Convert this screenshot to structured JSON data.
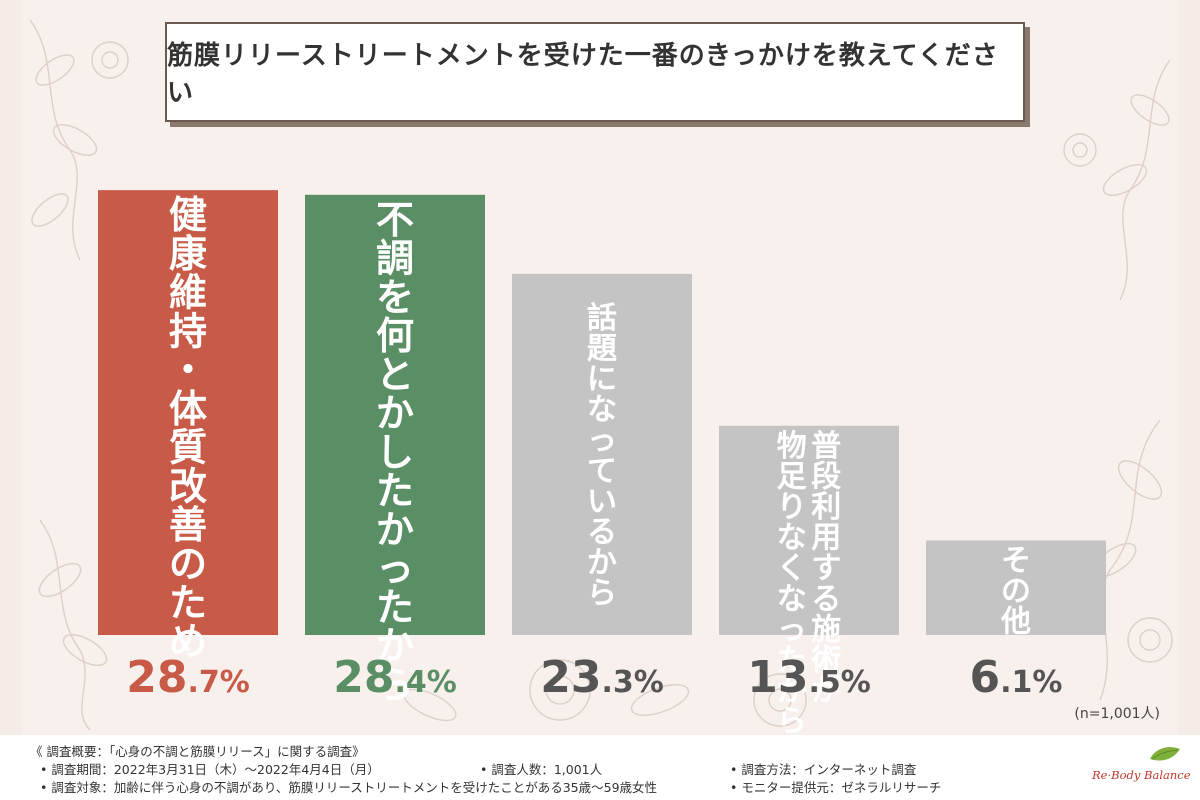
{
  "chart_data": {
    "type": "bar",
    "title": "筋膜リリーストリートメントを受けた一番のきっかけを教えてください",
    "categories": [
      "健康維持・体質改善のため",
      "不調を何とかしたかったから",
      "話題になっているから",
      "普段利用する施術が物足りなくなったから",
      "その他"
    ],
    "category_lines": [
      [
        "健康維持・体質改善のため"
      ],
      [
        "不調を何とかしたかったから"
      ],
      [
        "話題になっているから"
      ],
      [
        "普段利用する施術が",
        "物足りなくなったから"
      ],
      [
        "その他"
      ]
    ],
    "values": [
      28.7,
      28.4,
      23.3,
      13.5,
      6.1
    ],
    "value_labels": [
      "28.7%",
      "28.4%",
      "23.3%",
      "13.5%",
      "6.1%"
    ],
    "unit": "%",
    "ylim": [
      0,
      30
    ],
    "grid": false,
    "colors": [
      "#c85a48",
      "#5a8f65",
      "#c4c4c4",
      "#c4c4c4",
      "#c4c4c4"
    ],
    "value_colors": [
      "#c85a48",
      "#5a8f65",
      "#555555",
      "#555555",
      "#555555"
    ],
    "note": "(n=1,001人)"
  },
  "footer": {
    "overview": "《 調査概要：「心身の不調と筋膜リリース」に関する調査》",
    "period": "• 調査期間：2022年3月31日（木）～2022年4月4日（月）",
    "respondents": "• 調査人数：1,001人",
    "method": "• 調査方法：インターネット調査",
    "target": "• 調査対象：加齢に伴う心身の不調があり、筋膜リリーストリートメントを受けたことがある35歳～59歳女性",
    "provider": "• モニター提供元：ゼネラルリサーチ"
  },
  "logo": {
    "text": "Re·Body Balance",
    "color": "#c0392b",
    "leaf_color": "#7fb03a"
  }
}
